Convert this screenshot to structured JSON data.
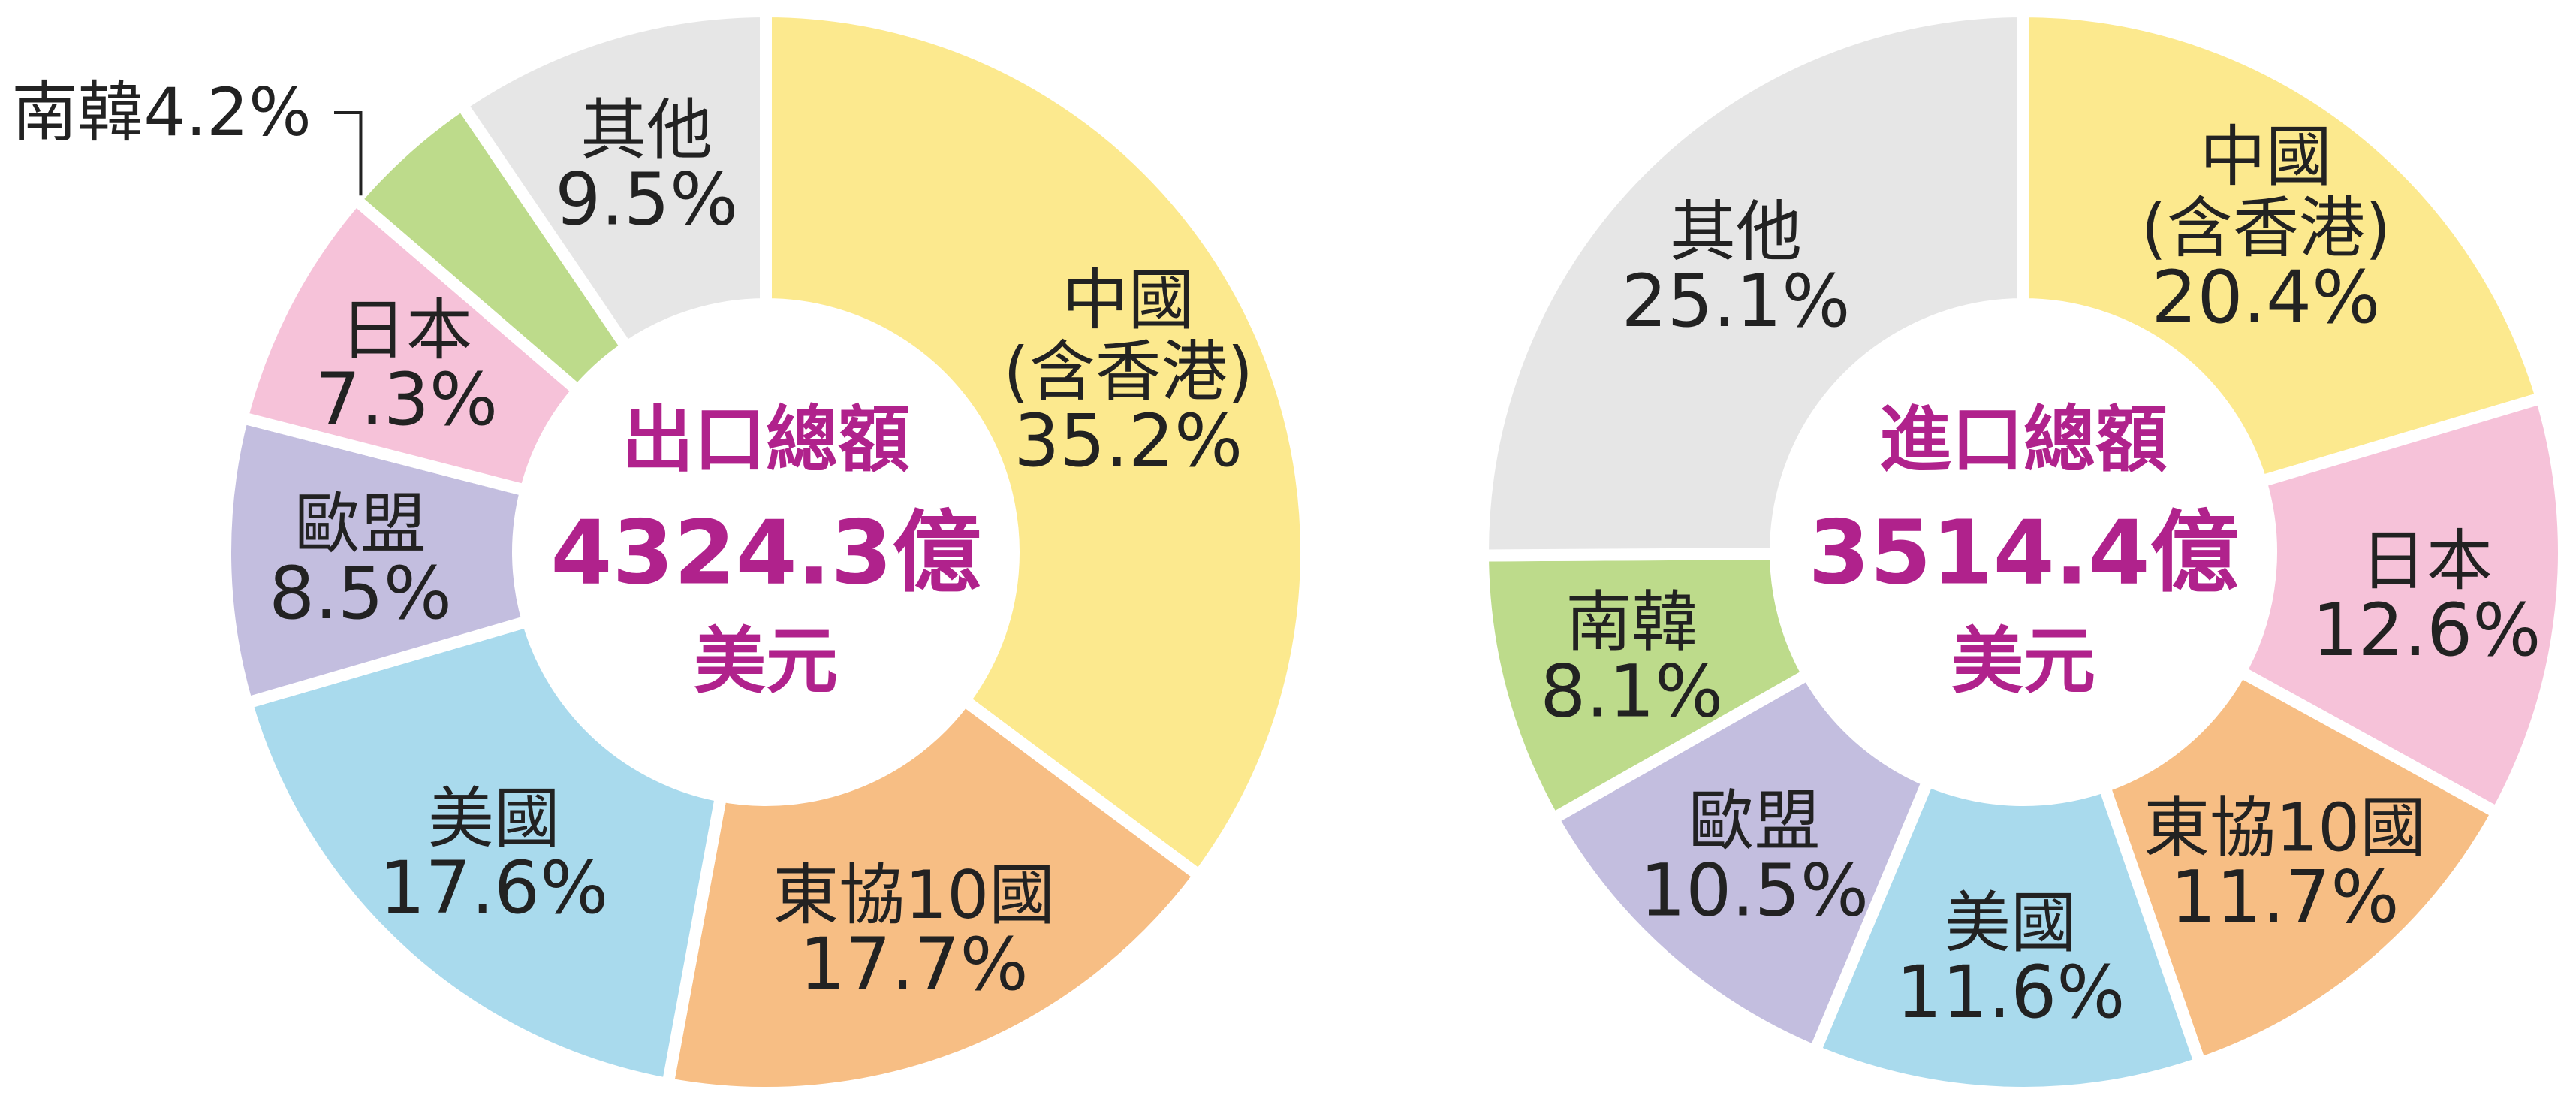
{
  "chart_data": [
    {
      "type": "pie",
      "center_title": "出口總額",
      "center_value": "4324.3億",
      "center_unit": "美元",
      "center_color": "#b0228c",
      "slices": [
        {
          "label": "中國\n(含香港)",
          "value": 35.2,
          "value_text": "35.2%",
          "color": "#fce98e"
        },
        {
          "label": "東協10國",
          "value": 17.7,
          "value_text": "17.7%",
          "color": "#f7be84"
        },
        {
          "label": "美國",
          "value": 17.6,
          "value_text": "17.6%",
          "color": "#a9daed"
        },
        {
          "label": "歐盟",
          "value": 8.5,
          "value_text": "8.5%",
          "color": "#c3bedf"
        },
        {
          "label": "日本",
          "value": 7.3,
          "value_text": "7.3%",
          "color": "#f6c2d9"
        },
        {
          "label": "南韓",
          "value": 4.2,
          "value_text": "4.2%",
          "color": "#bddb8b",
          "external_label": "南韓4.2%"
        },
        {
          "label": "其他",
          "value": 9.5,
          "value_text": "9.5%",
          "color": "#e6e6e6"
        }
      ]
    },
    {
      "type": "pie",
      "center_title": "進口總額",
      "center_value": "3514.4億",
      "center_unit": "美元",
      "center_color": "#b0228c",
      "slices": [
        {
          "label": "中國\n(含香港)",
          "value": 20.4,
          "value_text": "20.4%",
          "color": "#fce98e"
        },
        {
          "label": "日本",
          "value": 12.6,
          "value_text": "12.6%",
          "color": "#f6c2d9"
        },
        {
          "label": "東協10國",
          "value": 11.7,
          "value_text": "11.7%",
          "color": "#f7be84"
        },
        {
          "label": "美國",
          "value": 11.6,
          "value_text": "11.6%",
          "color": "#a9daed"
        },
        {
          "label": "歐盟",
          "value": 10.5,
          "value_text": "10.5%",
          "color": "#c3bedf"
        },
        {
          "label": "南韓",
          "value": 8.1,
          "value_text": "8.1%",
          "color": "#bddb8b"
        },
        {
          "label": "其他",
          "value": 25.1,
          "value_text": "25.1%",
          "color": "#e6e6e6"
        }
      ]
    }
  ]
}
